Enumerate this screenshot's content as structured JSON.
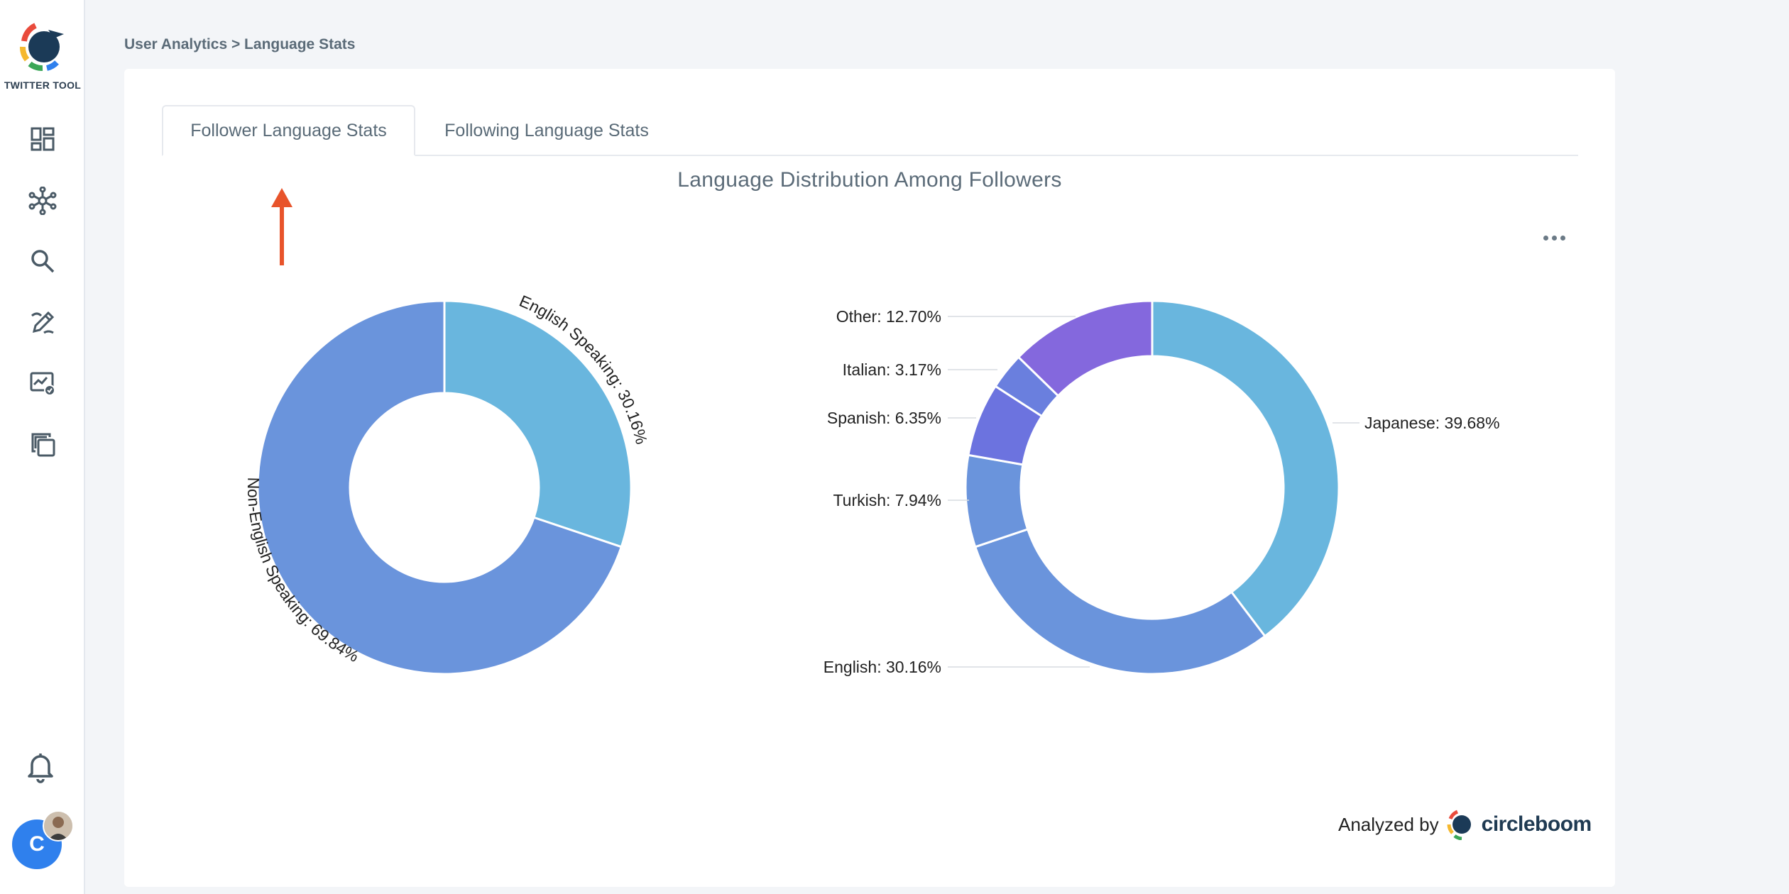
{
  "sidebar": {
    "logo_text": "TWITTER TOOL",
    "nav_items": [
      {
        "icon": "dashboard-icon"
      },
      {
        "icon": "network-icon"
      },
      {
        "icon": "search-icon"
      },
      {
        "icon": "pen-icon"
      },
      {
        "icon": "analytics-icon"
      },
      {
        "icon": "copy-icon"
      }
    ],
    "bell_icon": "bell-icon",
    "avatar_initial": "C"
  },
  "breadcrumb": "User Analytics > Language Stats",
  "tabs": [
    {
      "label": "Follower Language Stats",
      "active": true
    },
    {
      "label": "Following Language Stats",
      "active": false
    }
  ],
  "colors": {
    "accent_arrow": "#e8542b",
    "avatar": "#2f80ed"
  },
  "footer": {
    "analyzed_by": "Analyzed by",
    "brand": "circleboom"
  },
  "chart_data": [
    {
      "type": "pie",
      "donut": true,
      "title": "Language Distribution Among Followers",
      "slices": [
        {
          "label": "English Speaking",
          "value": 30.16,
          "display": "English Speaking: 30.16%",
          "color": "#69b6de"
        },
        {
          "label": "Non-English Speaking",
          "value": 69.84,
          "display": "Non-English Speaking: 69.84%",
          "color": "#6a94dc"
        }
      ]
    },
    {
      "type": "pie",
      "donut": true,
      "slices": [
        {
          "label": "Japanese",
          "value": 39.68,
          "display": "Japanese: 39.68%",
          "color": "#69b6de"
        },
        {
          "label": "English",
          "value": 30.16,
          "display": "English: 30.16%",
          "color": "#6a94dc"
        },
        {
          "label": "Turkish",
          "value": 7.94,
          "display": "Turkish: 7.94%",
          "color": "#6a94dc"
        },
        {
          "label": "Spanish",
          "value": 6.35,
          "display": "Spanish: 6.35%",
          "color": "#6c73df"
        },
        {
          "label": "Italian",
          "value": 3.17,
          "display": "Italian: 3.17%",
          "color": "#6a7fde"
        },
        {
          "label": "Other",
          "value": 12.7,
          "display": "Other: 12.70%",
          "color": "#8468dd"
        }
      ]
    }
  ]
}
